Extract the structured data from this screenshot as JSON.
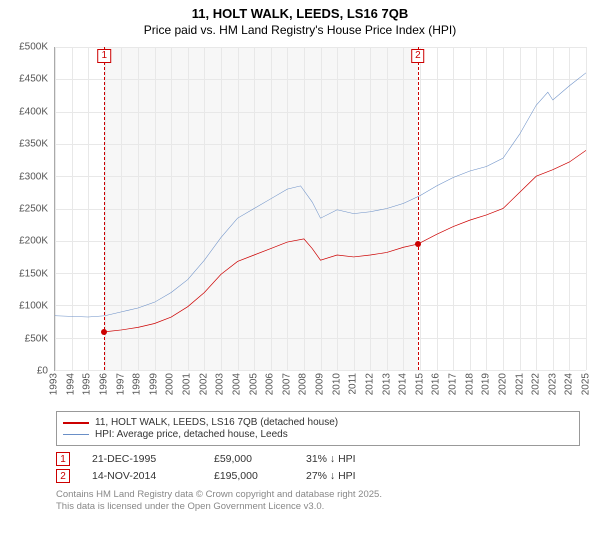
{
  "title": {
    "line1": "11, HOLT WALK, LEEDS, LS16 7QB",
    "line2": "Price paid vs. HM Land Registry's House Price Index (HPI)"
  },
  "chart": {
    "type": "line",
    "background_color": "#ffffff",
    "shaded_color": "#f7f7f7",
    "grid_color": "#e8e8e8",
    "axis_color": "#aaaaaa",
    "x_range": [
      1993,
      2025
    ],
    "y_range": [
      0,
      500000
    ],
    "y_ticks": [
      0,
      50000,
      100000,
      150000,
      200000,
      250000,
      300000,
      350000,
      400000,
      450000,
      500000
    ],
    "y_tick_labels": [
      "£0",
      "£50K",
      "£100K",
      "£150K",
      "£200K",
      "£250K",
      "£300K",
      "£350K",
      "£400K",
      "£450K",
      "£500K"
    ],
    "x_ticks": [
      1993,
      1994,
      1995,
      1996,
      1997,
      1998,
      1999,
      2000,
      2001,
      2002,
      2003,
      2004,
      2005,
      2006,
      2007,
      2008,
      2009,
      2010,
      2011,
      2012,
      2013,
      2014,
      2015,
      2016,
      2017,
      2018,
      2019,
      2020,
      2021,
      2022,
      2023,
      2024,
      2025
    ],
    "shaded_span": [
      1995.97,
      2014.87
    ],
    "series": [
      {
        "name": "price_paid",
        "color": "#cc0000",
        "width": 2,
        "points": [
          [
            1995.97,
            59000
          ],
          [
            1997,
            62000
          ],
          [
            1998,
            66000
          ],
          [
            1999,
            72000
          ],
          [
            2000,
            82000
          ],
          [
            2001,
            98000
          ],
          [
            2002,
            120000
          ],
          [
            2003,
            148000
          ],
          [
            2004,
            168000
          ],
          [
            2005,
            178000
          ],
          [
            2006,
            188000
          ],
          [
            2007,
            198000
          ],
          [
            2008,
            203000
          ],
          [
            2008.5,
            188000
          ],
          [
            2009,
            170000
          ],
          [
            2010,
            178000
          ],
          [
            2011,
            175000
          ],
          [
            2012,
            178000
          ],
          [
            2013,
            182000
          ],
          [
            2014,
            190000
          ],
          [
            2014.87,
            195000
          ],
          [
            2016,
            210000
          ],
          [
            2017,
            222000
          ],
          [
            2018,
            232000
          ],
          [
            2019,
            240000
          ],
          [
            2020,
            250000
          ],
          [
            2021,
            275000
          ],
          [
            2022,
            300000
          ],
          [
            2023,
            310000
          ],
          [
            2024,
            322000
          ],
          [
            2025,
            340000
          ]
        ]
      },
      {
        "name": "hpi",
        "color": "#6a8fc7",
        "width": 1.5,
        "points": [
          [
            1993,
            84000
          ],
          [
            1994,
            83000
          ],
          [
            1995,
            82000
          ],
          [
            1996,
            84000
          ],
          [
            1997,
            90000
          ],
          [
            1998,
            96000
          ],
          [
            1999,
            105000
          ],
          [
            2000,
            120000
          ],
          [
            2001,
            140000
          ],
          [
            2002,
            170000
          ],
          [
            2003,
            205000
          ],
          [
            2004,
            235000
          ],
          [
            2005,
            250000
          ],
          [
            2006,
            265000
          ],
          [
            2007,
            280000
          ],
          [
            2007.8,
            285000
          ],
          [
            2008.5,
            260000
          ],
          [
            2009,
            235000
          ],
          [
            2010,
            248000
          ],
          [
            2011,
            242000
          ],
          [
            2012,
            245000
          ],
          [
            2013,
            250000
          ],
          [
            2014,
            258000
          ],
          [
            2015,
            270000
          ],
          [
            2016,
            285000
          ],
          [
            2017,
            298000
          ],
          [
            2018,
            308000
          ],
          [
            2019,
            315000
          ],
          [
            2020,
            328000
          ],
          [
            2021,
            365000
          ],
          [
            2022,
            410000
          ],
          [
            2022.7,
            430000
          ],
          [
            2023,
            418000
          ],
          [
            2024,
            440000
          ],
          [
            2025,
            460000
          ]
        ]
      }
    ],
    "markers": [
      {
        "n": "1",
        "x": 1995.97,
        "date": "21-DEC-1995",
        "price": "£59,000",
        "delta": "31% ↓ HPI",
        "y": 59000
      },
      {
        "n": "2",
        "x": 2014.87,
        "date": "14-NOV-2014",
        "price": "£195,000",
        "delta": "27% ↓ HPI",
        "y": 195000
      }
    ]
  },
  "legend": {
    "items": [
      {
        "color": "#cc0000",
        "width": 2,
        "label": "11, HOLT WALK, LEEDS, LS16 7QB (detached house)"
      },
      {
        "color": "#6a8fc7",
        "width": 1.5,
        "label": "HPI: Average price, detached house, Leeds"
      }
    ]
  },
  "footer": {
    "line1": "Contains HM Land Registry data © Crown copyright and database right 2025.",
    "line2": "This data is licensed under the Open Government Licence v3.0."
  }
}
